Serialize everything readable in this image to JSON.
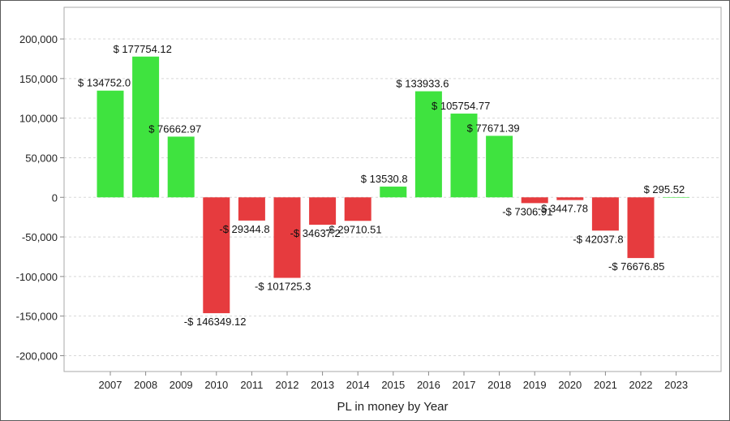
{
  "chart_data": {
    "type": "bar",
    "title": "",
    "xlabel": "PL in money by Year",
    "ylabel": "",
    "ylim": [
      -220000,
      240000
    ],
    "yticks": [
      200000,
      150000,
      100000,
      50000,
      0,
      -50000,
      -100000,
      -150000,
      -200000
    ],
    "ytick_labels": [
      "200,000",
      "150,000",
      "100,000",
      "50,000",
      "0",
      "-50,000",
      "-100,000",
      "-150,000",
      "-200,000"
    ],
    "grid": true,
    "categories": [
      "2007",
      "2008",
      "2009",
      "2010",
      "2011",
      "2012",
      "2013",
      "2014",
      "2015",
      "2016",
      "2017",
      "2018",
      "2019",
      "2020",
      "2021",
      "2022",
      "2023"
    ],
    "values": [
      134752.0,
      177754.12,
      76662.97,
      -146349.12,
      -29344.8,
      -101725.3,
      -34637.2,
      -29710.51,
      13530.8,
      133933.6,
      105754.77,
      77671.39,
      -7306.91,
      -3447.78,
      -42037.8,
      -76676.85,
      295.52
    ],
    "data_labels": [
      "$ 134752.0",
      "$ 177754.12",
      "$ 76662.97",
      "-$ 146349.12",
      "-$ 29344.8",
      "-$ 101725.3",
      "-$ 34637.2",
      "-$ 29710.51",
      "$ 13530.8",
      "$ 133933.6",
      "$ 105754.77",
      "$ 77671.39",
      "-$ 7306.91",
      "-$ 3447.78",
      "-$ 42037.8",
      "-$ 76676.85",
      "$ 295.52"
    ],
    "colors": {
      "positive": "#3fe33f",
      "negative": "#e63b3e",
      "grid": "#d8d8d8",
      "axis": "#888888",
      "plot_border": "#aaaaaa"
    }
  }
}
